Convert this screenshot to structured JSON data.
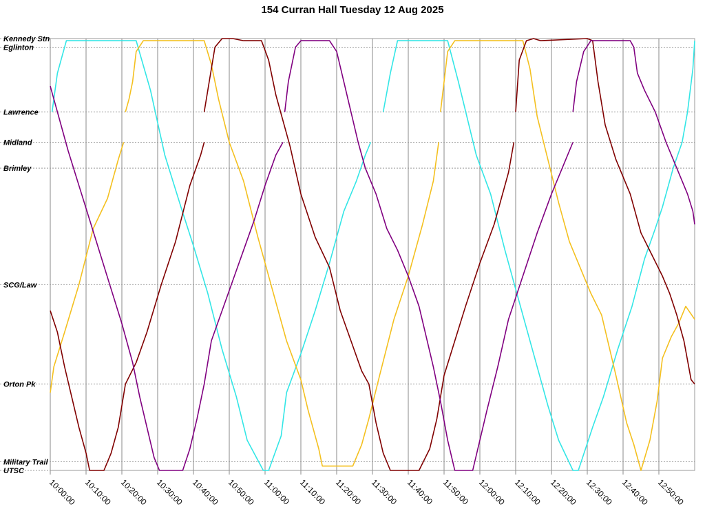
{
  "chart_data": {
    "type": "line",
    "title": "154 Curran Hall Tuesday 12 Aug 2025",
    "xlabel": "",
    "ylabel": "",
    "xlim": [
      "10:00:00",
      "13:00:00"
    ],
    "x_ticks": [
      "10:00:00",
      "10:10:00",
      "10:20:00",
      "10:30:00",
      "10:40:00",
      "10:50:00",
      "11:00:00",
      "11:10:00",
      "11:20:00",
      "11:30:00",
      "11:40:00",
      "11:50:00",
      "12:00:00",
      "12:10:00",
      "12:20:00",
      "12:30:00",
      "12:40:00",
      "12:50:00"
    ],
    "stops": [
      {
        "name": "Kennedy Stn",
        "pos": 0
      },
      {
        "name": "Eglinton",
        "pos": 2
      },
      {
        "name": "Lawrence",
        "pos": 17
      },
      {
        "name": "Midland",
        "pos": 24
      },
      {
        "name": "Brimley",
        "pos": 30
      },
      {
        "name": "SCG/Law",
        "pos": 57
      },
      {
        "name": "Orton Pk",
        "pos": 80
      },
      {
        "name": "Military Trail",
        "pos": 98
      },
      {
        "name": "UTSC",
        "pos": 100
      }
    ],
    "ylim": [
      0,
      100
    ],
    "grid": true,
    "legend": "none",
    "series": [
      {
        "color": "#33e6e6",
        "points": [
          [
            "10:00:30",
            17
          ],
          [
            "10:02:00",
            8
          ],
          [
            "10:04:30",
            0.5
          ],
          [
            "10:24:00",
            0.5
          ],
          [
            "10:28:00",
            12
          ],
          [
            "10:32:00",
            27
          ],
          [
            "10:36:30",
            39
          ],
          [
            "10:40:00",
            48
          ],
          [
            "10:44:00",
            59
          ],
          [
            "10:48:00",
            72
          ],
          [
            "10:52:00",
            83
          ],
          [
            "10:55:00",
            93
          ],
          [
            "10:59:30",
            100
          ],
          [
            "11:01:00",
            100
          ],
          [
            "11:04:30",
            92
          ],
          [
            "11:06:00",
            82
          ],
          [
            "11:10:00",
            73
          ],
          [
            "11:14:00",
            63
          ],
          [
            "11:18:00",
            52
          ],
          [
            "11:22:00",
            40
          ],
          [
            "11:25:30",
            33
          ],
          [
            "11:28:00",
            27
          ],
          [
            "11:29:30",
            24
          ]
        ]
      },
      {
        "color": "#33e6e6",
        "points": [
          [
            "11:33:00",
            17
          ],
          [
            "11:35:00",
            8
          ],
          [
            "11:37:00",
            0.5
          ],
          [
            "11:51:00",
            0.5
          ],
          [
            "11:54:00",
            10
          ],
          [
            "11:59:00",
            27
          ],
          [
            "12:03:00",
            36
          ],
          [
            "12:07:00",
            49
          ],
          [
            "12:11:00",
            61
          ],
          [
            "12:15:00",
            73
          ],
          [
            "12:19:00",
            85
          ],
          [
            "12:22:00",
            93
          ],
          [
            "12:26:00",
            100
          ],
          [
            "12:27:30",
            100
          ],
          [
            "12:31:30",
            90
          ],
          [
            "12:34:30",
            83
          ],
          [
            "12:38:30",
            72
          ],
          [
            "12:42:30",
            62
          ],
          [
            "12:46:00",
            51
          ],
          [
            "12:49:00",
            44
          ],
          [
            "12:51:00",
            39
          ],
          [
            "12:54:00",
            30
          ],
          [
            "12:56:30",
            24
          ],
          [
            "12:58:00",
            17
          ],
          [
            "12:59:30",
            7
          ],
          [
            "13:00:00",
            0.5
          ]
        ]
      },
      {
        "color": "#f4c01f",
        "points": [
          [
            "10:00:00",
            82
          ],
          [
            "10:01:00",
            76
          ],
          [
            "10:04:00",
            68
          ],
          [
            "10:08:00",
            57
          ],
          [
            "10:12:00",
            44
          ],
          [
            "10:16:00",
            37
          ],
          [
            "10:19:00",
            28
          ],
          [
            "10:20:30",
            24
          ]
        ]
      },
      {
        "color": "#f4c01f",
        "points": [
          [
            "10:21:00",
            17
          ],
          [
            "10:22:00",
            14
          ],
          [
            "10:23:00",
            10
          ],
          [
            "10:24:00",
            3
          ],
          [
            "10:26:00",
            0.5
          ],
          [
            "10:43:00",
            0.5
          ],
          [
            "10:45:00",
            6
          ],
          [
            "10:47:00",
            14
          ],
          [
            "10:50:00",
            24
          ],
          [
            "10:54:00",
            33
          ],
          [
            "10:58:00",
            46
          ],
          [
            "11:02:00",
            58
          ],
          [
            "11:06:00",
            70
          ],
          [
            "11:10:00",
            79
          ],
          [
            "11:12:00",
            86
          ],
          [
            "11:15:00",
            95
          ],
          [
            "11:16:00",
            99
          ],
          [
            "11:24:30",
            99
          ],
          [
            "11:27:00",
            94
          ],
          [
            "11:29:00",
            88
          ],
          [
            "11:32:00",
            78
          ],
          [
            "11:36:00",
            65
          ],
          [
            "11:40:00",
            55
          ],
          [
            "11:44:00",
            43
          ],
          [
            "11:47:00",
            33
          ],
          [
            "11:48:30",
            24
          ]
        ]
      },
      {
        "color": "#f4c01f",
        "points": [
          [
            "11:49:00",
            17
          ],
          [
            "11:50:00",
            10
          ],
          [
            "11:51:00",
            3
          ],
          [
            "11:53:00",
            0.5
          ],
          [
            "12:12:00",
            0.5
          ],
          [
            "12:14:00",
            7
          ],
          [
            "12:16:00",
            18
          ],
          [
            "12:19:00",
            28
          ],
          [
            "12:22:00",
            38
          ],
          [
            "12:25:00",
            47
          ],
          [
            "12:28:00",
            53
          ],
          [
            "12:31:00",
            59
          ],
          [
            "12:34:00",
            64
          ],
          [
            "12:36:00",
            71
          ],
          [
            "12:38:00",
            78
          ],
          [
            "12:41:00",
            89
          ],
          [
            "12:43:00",
            94
          ],
          [
            "12:45:00",
            100
          ],
          [
            "12:47:30",
            93
          ],
          [
            "12:49:30",
            84
          ],
          [
            "12:51:00",
            74
          ],
          [
            "12:53:30",
            69
          ],
          [
            "12:55:30",
            66
          ],
          [
            "12:57:30",
            62
          ],
          [
            "13:00:00",
            65
          ]
        ]
      },
      {
        "color": "#800000",
        "points": [
          [
            "10:00:00",
            63
          ],
          [
            "10:02:00",
            68
          ],
          [
            "10:04:00",
            76
          ],
          [
            "10:06:00",
            83
          ],
          [
            "10:08:00",
            90
          ],
          [
            "10:10:00",
            96
          ],
          [
            "10:11:00",
            100
          ],
          [
            "10:15:00",
            100
          ],
          [
            "10:17:00",
            96
          ],
          [
            "10:19:00",
            90
          ],
          [
            "10:21:00",
            80
          ],
          [
            "10:24:00",
            75
          ],
          [
            "10:27:00",
            68
          ],
          [
            "10:31:00",
            57
          ],
          [
            "10:35:00",
            47
          ],
          [
            "10:39:00",
            34
          ],
          [
            "10:42:00",
            27
          ],
          [
            "10:43:00",
            24
          ]
        ]
      },
      {
        "color": "#800000",
        "points": [
          [
            "10:43:00",
            17
          ],
          [
            "10:44:00",
            12
          ],
          [
            "10:46:00",
            2
          ],
          [
            "10:48:00",
            0
          ],
          [
            "10:51:00",
            0
          ],
          [
            "10:54:00",
            0.5
          ],
          [
            "10:59:00",
            0.5
          ],
          [
            "11:01:00",
            5
          ],
          [
            "11:03:00",
            13
          ],
          [
            "11:07:00",
            25
          ],
          [
            "11:10:00",
            36
          ],
          [
            "11:14:00",
            46
          ],
          [
            "11:18:00",
            53
          ],
          [
            "11:21:00",
            63
          ],
          [
            "11:24:00",
            70
          ],
          [
            "11:27:00",
            77
          ],
          [
            "11:29:00",
            80
          ],
          [
            "11:31:00",
            89
          ],
          [
            "11:33:00",
            96
          ],
          [
            "11:35:00",
            100
          ],
          [
            "11:43:00",
            100
          ],
          [
            "11:46:00",
            95
          ],
          [
            "11:48:00",
            88
          ],
          [
            "11:50:00",
            78
          ],
          [
            "11:53:00",
            70
          ],
          [
            "11:56:00",
            62
          ],
          [
            "12:00:00",
            52
          ],
          [
            "12:04:00",
            43
          ],
          [
            "12:08:00",
            31
          ],
          [
            "12:09:30",
            24
          ]
        ]
      },
      {
        "color": "#800000",
        "points": [
          [
            "12:10:00",
            17
          ],
          [
            "12:11:00",
            5
          ],
          [
            "12:13:00",
            0.5
          ],
          [
            "12:15:00",
            0
          ],
          [
            "12:17:00",
            0.5
          ],
          [
            "12:30:00",
            0
          ],
          [
            "12:31:30",
            0.5
          ],
          [
            "12:33:00",
            10
          ],
          [
            "12:35:00",
            20
          ],
          [
            "12:38:00",
            28
          ],
          [
            "12:42:00",
            36
          ],
          [
            "12:45:00",
            45
          ],
          [
            "12:48:00",
            50
          ],
          [
            "12:51:00",
            55
          ],
          [
            "12:53:00",
            59
          ],
          [
            "12:55:00",
            64
          ],
          [
            "12:57:00",
            70
          ],
          [
            "12:59:00",
            79
          ],
          [
            "13:00:00",
            80
          ]
        ]
      },
      {
        "color": "#800080",
        "points": [
          [
            "10:00:00",
            11
          ],
          [
            "10:01:00",
            14
          ],
          [
            "10:03:00",
            20
          ],
          [
            "10:05:00",
            26
          ],
          [
            "10:08:00",
            34
          ],
          [
            "10:11:00",
            42
          ],
          [
            "10:14:00",
            50
          ],
          [
            "10:17:00",
            58
          ],
          [
            "10:20:00",
            66
          ],
          [
            "10:23:00",
            75
          ],
          [
            "10:25:00",
            83
          ],
          [
            "10:27:00",
            90
          ],
          [
            "10:29:00",
            97
          ],
          [
            "10:30:30",
            100
          ],
          [
            "10:37:00",
            100
          ],
          [
            "10:39:00",
            95
          ],
          [
            "10:41:00",
            88
          ],
          [
            "10:43:00",
            80
          ],
          [
            "10:45:00",
            70
          ],
          [
            "10:48:00",
            63
          ],
          [
            "10:51:00",
            56
          ],
          [
            "10:54:00",
            49
          ],
          [
            "10:57:00",
            42
          ],
          [
            "11:00:00",
            34
          ],
          [
            "11:03:00",
            27
          ],
          [
            "11:05:00",
            24
          ]
        ]
      },
      {
        "color": "#800080",
        "points": [
          [
            "11:05:30",
            17
          ],
          [
            "11:06:30",
            10
          ],
          [
            "11:08:30",
            2
          ],
          [
            "11:10:00",
            0.5
          ],
          [
            "11:18:00",
            0.5
          ],
          [
            "11:20:00",
            3
          ],
          [
            "11:22:00",
            10
          ],
          [
            "11:24:00",
            17
          ],
          [
            "11:26:00",
            24
          ],
          [
            "11:28:00",
            30
          ],
          [
            "11:31:00",
            36
          ],
          [
            "11:34:00",
            44
          ],
          [
            "11:37:00",
            49
          ],
          [
            "11:40:00",
            55
          ],
          [
            "11:43:00",
            62
          ],
          [
            "11:45:00",
            69
          ],
          [
            "11:47:00",
            76
          ],
          [
            "11:49:00",
            84
          ],
          [
            "11:51:00",
            93
          ],
          [
            "11:53:00",
            100
          ],
          [
            "11:58:00",
            100
          ],
          [
            "12:00:00",
            93
          ],
          [
            "12:02:00",
            86
          ],
          [
            "12:05:00",
            76
          ],
          [
            "12:08:00",
            65
          ],
          [
            "12:12:00",
            55
          ],
          [
            "12:16:00",
            45
          ],
          [
            "12:20:00",
            36
          ],
          [
            "12:24:00",
            28
          ],
          [
            "12:26:00",
            24
          ]
        ]
      },
      {
        "color": "#800080",
        "points": [
          [
            "12:26:00",
            17
          ],
          [
            "12:27:00",
            10
          ],
          [
            "12:29:00",
            3
          ],
          [
            "12:31:00",
            0.5
          ],
          [
            "12:42:00",
            0.5
          ],
          [
            "12:43:00",
            2
          ],
          [
            "12:44:00",
            8
          ],
          [
            "12:46:00",
            12
          ],
          [
            "12:49:00",
            17
          ],
          [
            "12:52:00",
            24
          ],
          [
            "12:55:00",
            30
          ],
          [
            "12:58:00",
            36
          ],
          [
            "12:59:30",
            40
          ],
          [
            "13:00:00",
            43
          ]
        ]
      }
    ]
  }
}
